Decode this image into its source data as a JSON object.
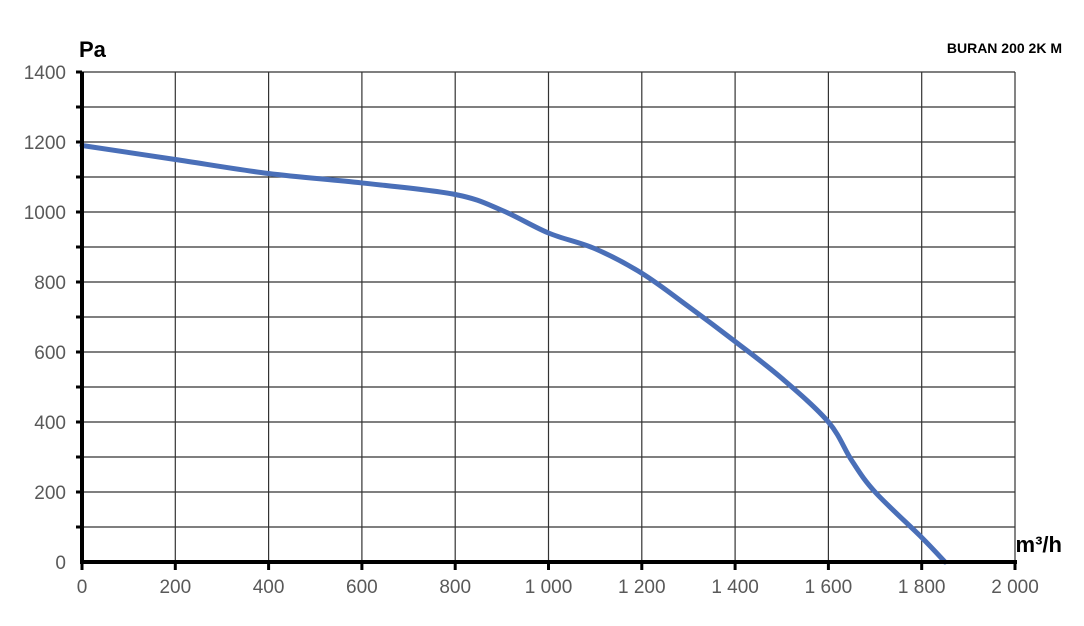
{
  "chart_data": {
    "type": "line",
    "title": "BURAN  200 2K M",
    "xlabel": "m³/h",
    "ylabel": "Pa",
    "xlim": [
      0,
      2000
    ],
    "ylim": [
      0,
      1400
    ],
    "x_ticks": [
      0,
      200,
      400,
      600,
      800,
      1000,
      1200,
      1400,
      1600,
      1800,
      2000
    ],
    "x_tick_labels": [
      "0",
      "200",
      "400",
      "600",
      "800",
      "1 000",
      "1 200",
      "1 400",
      "1 600",
      "1 800",
      "2 000"
    ],
    "y_ticks": [
      0,
      200,
      400,
      600,
      800,
      1000,
      1200,
      1400
    ],
    "y_tick_labels": [
      "0",
      "200",
      "400",
      "600",
      "800",
      "1000",
      "1200",
      "1400"
    ],
    "y_minor_step": 100,
    "grid": true,
    "series": [
      {
        "color": "#4a6fb8",
        "x": [
          0,
          200,
          400,
          600,
          800,
          900,
          1000,
          1100,
          1200,
          1300,
          1400,
          1500,
          1600,
          1650,
          1700,
          1800,
          1850
        ],
        "y": [
          1190,
          1150,
          1110,
          1083,
          1050,
          1005,
          940,
          895,
          825,
          730,
          630,
          525,
          400,
          290,
          200,
          70,
          0
        ]
      }
    ]
  }
}
